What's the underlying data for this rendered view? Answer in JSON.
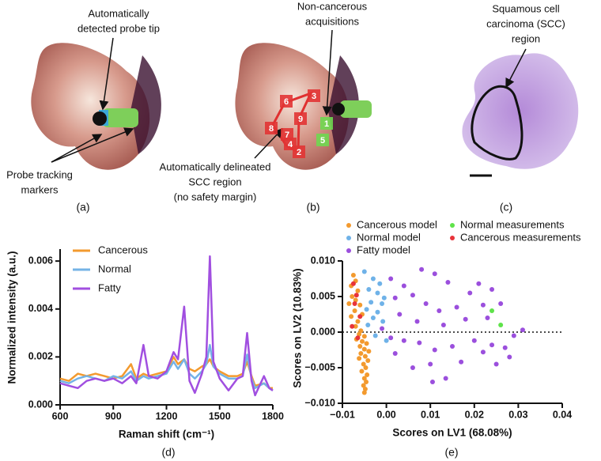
{
  "panels": {
    "a": {
      "label": "(a)",
      "annotations": {
        "probe_tip": [
          "Automatically",
          "detected probe tip"
        ],
        "markers": [
          "Probe tracking",
          "markers"
        ]
      }
    },
    "b": {
      "label": "(b)",
      "annotations": {
        "acquisitions": [
          "Non-cancerous",
          "acquisitions"
        ],
        "region": [
          "Automatically delineated",
          "SCC region",
          "(no safety margin)"
        ]
      },
      "squares": [
        "3",
        "6",
        "9",
        "8",
        "7",
        "4",
        "2",
        "1",
        "5"
      ]
    },
    "c": {
      "label": "(c)",
      "annotations": {
        "scc": [
          "Squamous cell",
          "carcinoma (SCC)",
          "region"
        ]
      }
    },
    "d": {
      "label": "(d)"
    },
    "e": {
      "label": "(e)"
    }
  },
  "chart_data": [
    {
      "type": "line",
      "xlabel": "Raman shift (cm⁻¹)",
      "ylabel": "Normalized intensity (a.u.)",
      "x": [
        600,
        650,
        700,
        750,
        800,
        850,
        900,
        950,
        1000,
        1030,
        1070,
        1100,
        1150,
        1200,
        1240,
        1265,
        1300,
        1330,
        1360,
        1400,
        1425,
        1445,
        1465,
        1500,
        1550,
        1600,
        1630,
        1655,
        1680,
        1700,
        1750,
        1780,
        1800
      ],
      "series": [
        {
          "name": "Cancerous",
          "color": "#f39a2e",
          "values": [
            0.0011,
            0.001,
            0.0013,
            0.0012,
            0.0013,
            0.0012,
            0.0011,
            0.0012,
            0.0017,
            0.0011,
            0.0013,
            0.0012,
            0.0013,
            0.0014,
            0.002,
            0.0017,
            0.0019,
            0.0015,
            0.0014,
            0.0016,
            0.0017,
            0.0019,
            0.0016,
            0.0014,
            0.0012,
            0.0012,
            0.0013,
            0.0018,
            0.0012,
            0.0008,
            0.0009,
            0.0007,
            0.0007
          ]
        },
        {
          "name": "Normal",
          "color": "#74b3e6",
          "values": [
            0.001,
            0.0009,
            0.0011,
            0.0012,
            0.0011,
            0.001,
            0.0012,
            0.0011,
            0.0014,
            0.001,
            0.0012,
            0.0011,
            0.0012,
            0.0013,
            0.0018,
            0.0015,
            0.0019,
            0.0013,
            0.0011,
            0.0014,
            0.0017,
            0.0025,
            0.0016,
            0.0013,
            0.0011,
            0.0011,
            0.0012,
            0.0021,
            0.0011,
            0.0007,
            0.0009,
            0.0007,
            0.0006
          ]
        },
        {
          "name": "Fatty",
          "color": "#a14fe0",
          "values": [
            0.0009,
            0.0008,
            0.0007,
            0.001,
            0.0011,
            0.001,
            0.0011,
            0.0009,
            0.0012,
            0.0009,
            0.0025,
            0.0012,
            0.0011,
            0.0014,
            0.0022,
            0.0019,
            0.0041,
            0.001,
            0.0005,
            0.0013,
            0.002,
            0.0062,
            0.0018,
            0.0011,
            0.0006,
            0.0011,
            0.0012,
            0.003,
            0.001,
            0.0004,
            0.0012,
            0.0007,
            0.0006
          ]
        }
      ],
      "xlim": [
        600,
        1800
      ],
      "xticks": [
        600,
        900,
        1200,
        1500,
        1800
      ],
      "ylim": [
        0,
        0.0065
      ],
      "yticks": [
        {
          "value": 0,
          "label": "0.000"
        },
        {
          "value": 0.002,
          "label": "0.002"
        },
        {
          "value": 0.004,
          "label": "0.004"
        },
        {
          "value": 0.006,
          "label": "0.006"
        }
      ],
      "legend": "upper left"
    },
    {
      "type": "scatter",
      "xlabel": "Scores on LV1 (68.08%)",
      "ylabel": "Scores on LV2 (10.83%)",
      "series": [
        {
          "name": "Cancerous model",
          "color": "#f39a2e",
          "x": [
            -0.0075,
            -0.007,
            -0.008,
            -0.0065,
            -0.0078,
            -0.007,
            -0.0085,
            -0.006,
            -0.0072,
            -0.0055,
            -0.008,
            -0.0065,
            -0.007,
            -0.0058,
            -0.0062,
            -0.005,
            -0.0068,
            -0.0055,
            -0.0045,
            -0.006,
            -0.005,
            -0.004,
            -0.0058,
            -0.0048,
            -0.0062,
            -0.0042,
            -0.0052,
            -0.0047,
            -0.0056,
            -0.0044,
            -0.005,
            -0.0046,
            -0.0052,
            -0.0048,
            -0.005
          ],
          "y": [
            0.008,
            0.0072,
            0.0065,
            0.0058,
            0.005,
            0.0045,
            0.004,
            0.0038,
            0.003,
            0.0025,
            0.0022,
            0.0015,
            0.0008,
            0.0002,
            -0.0003,
            -0.0006,
            -0.001,
            -0.0013,
            -0.0016,
            -0.002,
            -0.0024,
            -0.0027,
            -0.003,
            -0.0034,
            -0.0037,
            -0.004,
            -0.0045,
            -0.005,
            -0.0055,
            -0.006,
            -0.0065,
            -0.007,
            -0.0075,
            -0.008,
            -0.0085
          ]
        },
        {
          "name": "Normal model",
          "color": "#6fb2e8",
          "x": [
            -0.005,
            -0.003,
            -0.0015,
            -0.004,
            -0.002,
            -0.0005,
            -0.0035,
            -0.001,
            -0.0045,
            -0.002,
            -0.003,
            -0.0008,
            -0.0042,
            -0.0025,
            0.0
          ],
          "y": [
            0.0085,
            0.0075,
            0.0068,
            0.006,
            0.0055,
            0.0048,
            0.0042,
            0.004,
            0.0032,
            0.0028,
            0.002,
            0.0015,
            0.001,
            -0.0005,
            -0.0012
          ]
        },
        {
          "name": "Fatty model",
          "color": "#9b4fdd",
          "x": [
            0.001,
            0.004,
            0.008,
            0.011,
            0.014,
            0.019,
            0.021,
            0.024,
            0.002,
            0.006,
            0.009,
            0.012,
            0.016,
            0.022,
            0.026,
            0.003,
            0.007,
            0.013,
            0.018,
            0.023,
            -0.001,
            0.001,
            0.004,
            0.0075,
            0.011,
            0.015,
            0.02,
            0.024,
            0.027,
            0.029,
            0.031,
            0.028,
            0.025,
            0.022,
            0.017,
            0.01,
            0.006,
            0.002,
            0.0135,
            0.0105
          ],
          "y": [
            0.0075,
            0.0065,
            0.0088,
            0.0082,
            0.007,
            0.0055,
            0.0068,
            0.006,
            0.0048,
            0.0052,
            0.004,
            0.003,
            0.0035,
            0.0038,
            0.004,
            0.0025,
            0.0015,
            0.001,
            0.0018,
            0.002,
            0.0005,
            -0.0008,
            -0.0012,
            -0.0015,
            -0.0025,
            -0.002,
            -0.0012,
            -0.0018,
            -0.0022,
            -0.0005,
            0.0003,
            -0.0035,
            -0.0045,
            -0.0028,
            -0.0042,
            -0.0045,
            -0.005,
            -0.003,
            -0.0065,
            -0.007
          ]
        },
        {
          "name": "Normal measurements",
          "color": "#5fe34a",
          "x": [
            0.024,
            0.026
          ],
          "y": [
            0.003,
            0.001
          ]
        },
        {
          "name": "Cancerous measurements",
          "color": "#e8333a",
          "x": [
            -0.0075,
            -0.0068,
            -0.0072,
            -0.006,
            -0.0078,
            -0.0065
          ],
          "y": [
            0.0068,
            0.0052,
            0.004,
            0.0022,
            0.0008,
            -0.0008
          ]
        }
      ],
      "xlim": [
        -0.01,
        0.04
      ],
      "xticks": [
        {
          "value": -0.01,
          "label": "−0.01"
        },
        {
          "value": 0,
          "label": "0.00"
        },
        0.01,
        0.02,
        0.03,
        0.04
      ],
      "ylim": [
        -0.01,
        0.01
      ],
      "yticks": [
        {
          "value": -0.01,
          "label": "−0.010"
        },
        {
          "value": -0.005,
          "label": "−0.005"
        },
        {
          "value": 0,
          "label": "0.000"
        },
        {
          "value": 0.005,
          "label": "0.005"
        },
        {
          "value": 0.01,
          "label": "0.010"
        }
      ],
      "reference_line": 0,
      "legend": "above"
    }
  ]
}
